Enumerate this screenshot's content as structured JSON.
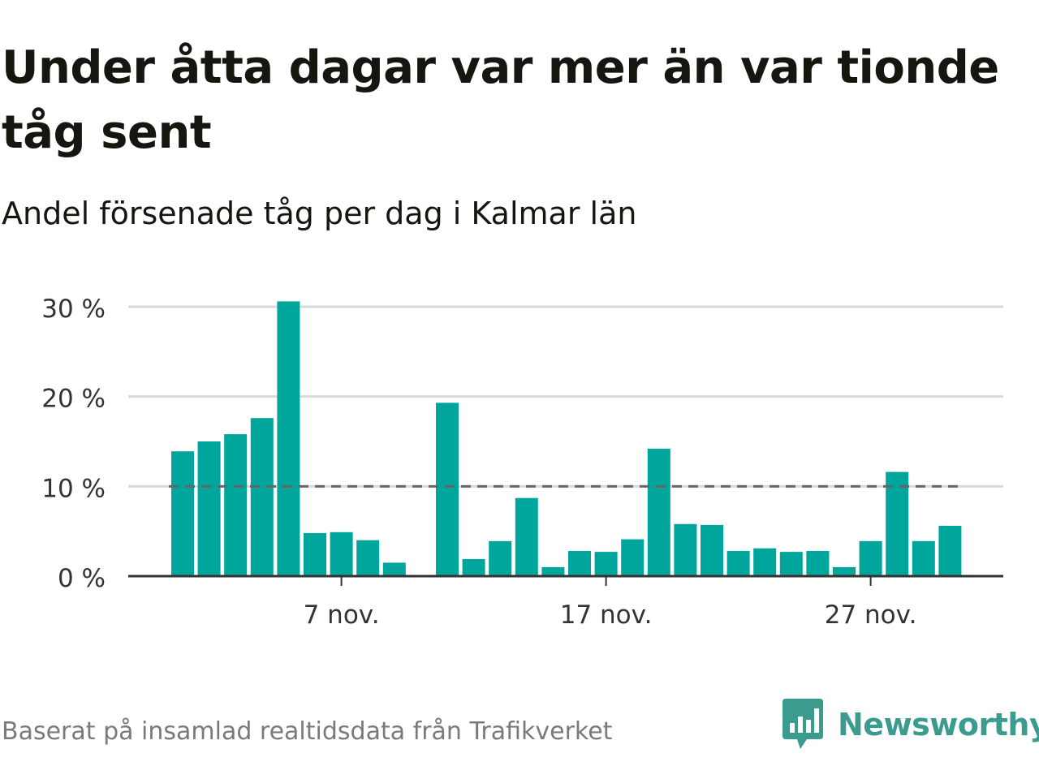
{
  "title": "Under åtta dagar var mer än var tionde tåg sent",
  "subtitle": "Andel försenade tåg per dag i Kalmar län",
  "footer": {
    "source": "Baserat på insamlad realtidsdata från Trafikverket",
    "brand": "Newsworthy"
  },
  "colors": {
    "bar": "#00a69c",
    "reference_line": "#666666",
    "grid": "#d9d9d9",
    "axis": "#333333",
    "brand": "#3c9b8f"
  },
  "icons": {
    "logo": "bar-chart-speech-bubble-icon"
  },
  "chart_data": {
    "type": "bar",
    "x_unit": "day of November",
    "x": [
      1,
      2,
      3,
      4,
      5,
      6,
      7,
      8,
      9,
      11,
      12,
      13,
      14,
      15,
      16,
      17,
      18,
      19,
      20,
      21,
      22,
      23,
      24,
      25,
      26,
      27,
      28,
      29,
      30
    ],
    "values": [
      13.9,
      15.0,
      15.8,
      17.6,
      30.6,
      4.8,
      4.9,
      4.0,
      1.5,
      19.3,
      1.9,
      3.9,
      8.7,
      1.0,
      2.8,
      2.7,
      4.1,
      14.2,
      5.8,
      5.7,
      2.8,
      3.1,
      2.7,
      2.8,
      1.0,
      3.9,
      11.6,
      3.9,
      5.6
    ],
    "ylim": [
      0,
      30
    ],
    "y_ticks": [
      0,
      10,
      20,
      30
    ],
    "y_tick_labels": [
      "0 %",
      "10 %",
      "20 %",
      "30 %"
    ],
    "x_ticks": [
      7,
      17,
      27
    ],
    "x_tick_labels": [
      "7 nov.",
      "17 nov.",
      "27 nov."
    ],
    "reference_line": {
      "value": 10,
      "style": "dashed"
    },
    "grid": true,
    "legend": "none"
  }
}
